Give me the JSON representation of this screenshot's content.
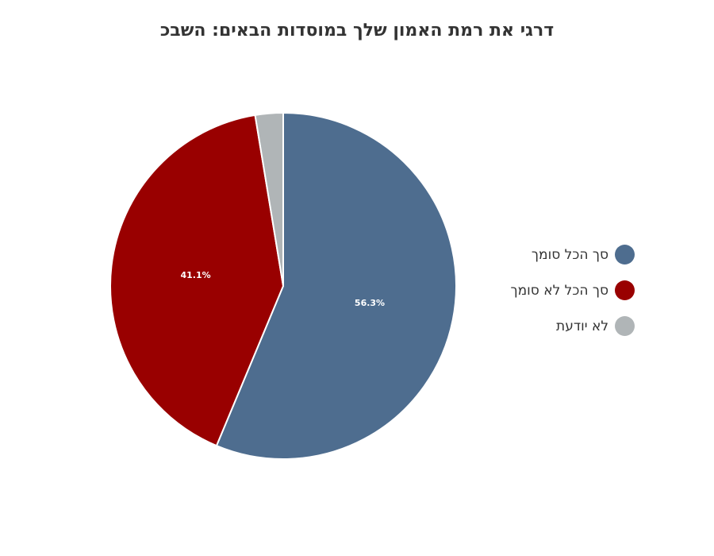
{
  "chart_data": {
    "type": "pie",
    "title": "דרגי את רמת האמון שלך במוסדות הבאים: השבכ",
    "categories": [
      "סך הכל סומך",
      "סך הכל לא סומך",
      "לא יודעת"
    ],
    "values": [
      56.3,
      41.1,
      2.6
    ],
    "data_labels": [
      "56.3%",
      "41.1%",
      ""
    ],
    "colors": [
      "#4e6d8f",
      "#990000",
      "#b0b5b7"
    ],
    "legend_position": "right"
  }
}
